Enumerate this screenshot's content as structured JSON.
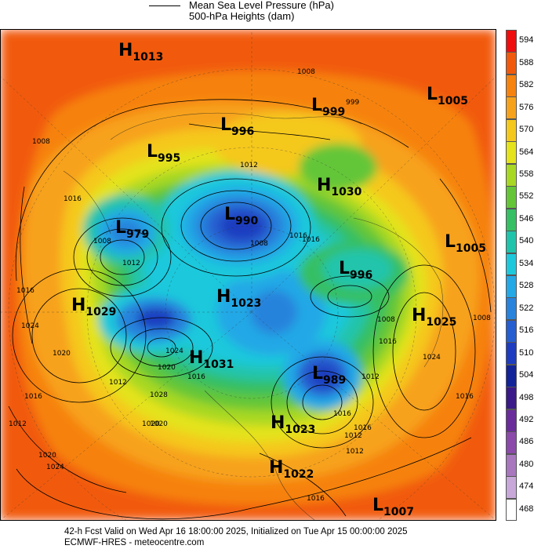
{
  "legend": {
    "line_label": "Mean Sea Level Pressure (hPa)",
    "fill_label": "500-hPa Heights (dam)"
  },
  "footer": {
    "valid_text": "42-h Fcst Valid on Wed Apr 16 18:00:00 2025, Initialized on Tue Apr 15 00:00:00 2025",
    "source_text": "ECMWF-HRES - meteocentre.com"
  },
  "colorbar": {
    "levels": [
      "594",
      "588",
      "582",
      "576",
      "570",
      "564",
      "558",
      "552",
      "546",
      "540",
      "534",
      "528",
      "522",
      "516",
      "510",
      "504",
      "498",
      "492",
      "486",
      "480",
      "474",
      "468"
    ],
    "colors": [
      "#f00d0d",
      "#f15a0c",
      "#f6820f",
      "#f7a21c",
      "#f5c81e",
      "#e4e31c",
      "#a8d822",
      "#64c637",
      "#36bf64",
      "#20c4ab",
      "#1ec8dc",
      "#24a8e6",
      "#2783dc",
      "#255ed0",
      "#1e3cc0",
      "#12239a",
      "#3a1a88",
      "#6a2c9a",
      "#8c4aaa",
      "#a877be",
      "#c8a8d8",
      "#ffffff"
    ]
  },
  "systems": [
    {
      "type": "H",
      "value": "1013"
    },
    {
      "type": "L",
      "value": "1005"
    },
    {
      "type": "L",
      "value": "999"
    },
    {
      "type": "L",
      "value": "996"
    },
    {
      "type": "L",
      "value": "995"
    },
    {
      "type": "H",
      "value": "1030"
    },
    {
      "type": "L",
      "value": "990"
    },
    {
      "type": "L",
      "value": "979"
    },
    {
      "type": "L",
      "value": "1005"
    },
    {
      "type": "L",
      "value": "996"
    },
    {
      "type": "H",
      "value": "1029"
    },
    {
      "type": "H",
      "value": "1023"
    },
    {
      "type": "H",
      "value": "1025"
    },
    {
      "type": "H",
      "value": "1031"
    },
    {
      "type": "L",
      "value": "989"
    },
    {
      "type": "H",
      "value": "1023"
    },
    {
      "type": "H",
      "value": "1022"
    },
    {
      "type": "L",
      "value": "1007"
    }
  ],
  "isobar_labels": [
    "1008",
    "999",
    "1012",
    "1016",
    "1008",
    "1008",
    "1012",
    "1016",
    "1024",
    "1020",
    "1028",
    "1020",
    "1016",
    "1012",
    "1024",
    "1012",
    "1016",
    "1020",
    "1008",
    "1016",
    "1016",
    "1008",
    "1016",
    "1012",
    "1012",
    "1016",
    "1020",
    "1024",
    "1016",
    "1008",
    "1020",
    "1024",
    "1016",
    "1016",
    "1012",
    "1016"
  ]
}
